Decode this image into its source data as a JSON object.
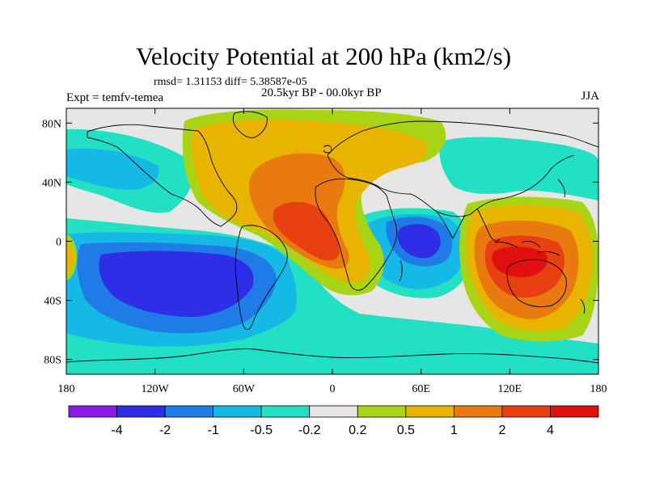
{
  "header": {
    "title": "Velocity Potential at 200 hPa (km2/s)",
    "stats": "rmsd= 1.31153 diff= 5.38587e-05",
    "experiment": "Expt = temfv-temea",
    "period": "20.5kyr BP - 00.0kyr BP",
    "season": "JJA"
  },
  "map": {
    "projection": "cylindrical equidistant",
    "lon_range": [
      -180,
      180
    ],
    "lat_range": [
      -90,
      90
    ],
    "lon_ticks": [
      "180",
      "120W",
      "60W",
      "0",
      "60E",
      "120E",
      "180"
    ],
    "lat_ticks": [
      "80N",
      "40N",
      "0",
      "40S",
      "80S"
    ],
    "background_color": "#e6e6e6",
    "coastline_color": "#000000"
  },
  "colorbar": {
    "colors": [
      "#8b1ce8",
      "#2e2ee6",
      "#1f7ce6",
      "#15b9e6",
      "#22e0c4",
      "#e6e6e6",
      "#a9d416",
      "#e8b400",
      "#e87a10",
      "#e84010",
      "#e01010"
    ],
    "labels": [
      "-4",
      "-2",
      "-1",
      "-0.5",
      "-0.2",
      "0.2",
      "0.5",
      "1",
      "2",
      "4"
    ]
  }
}
